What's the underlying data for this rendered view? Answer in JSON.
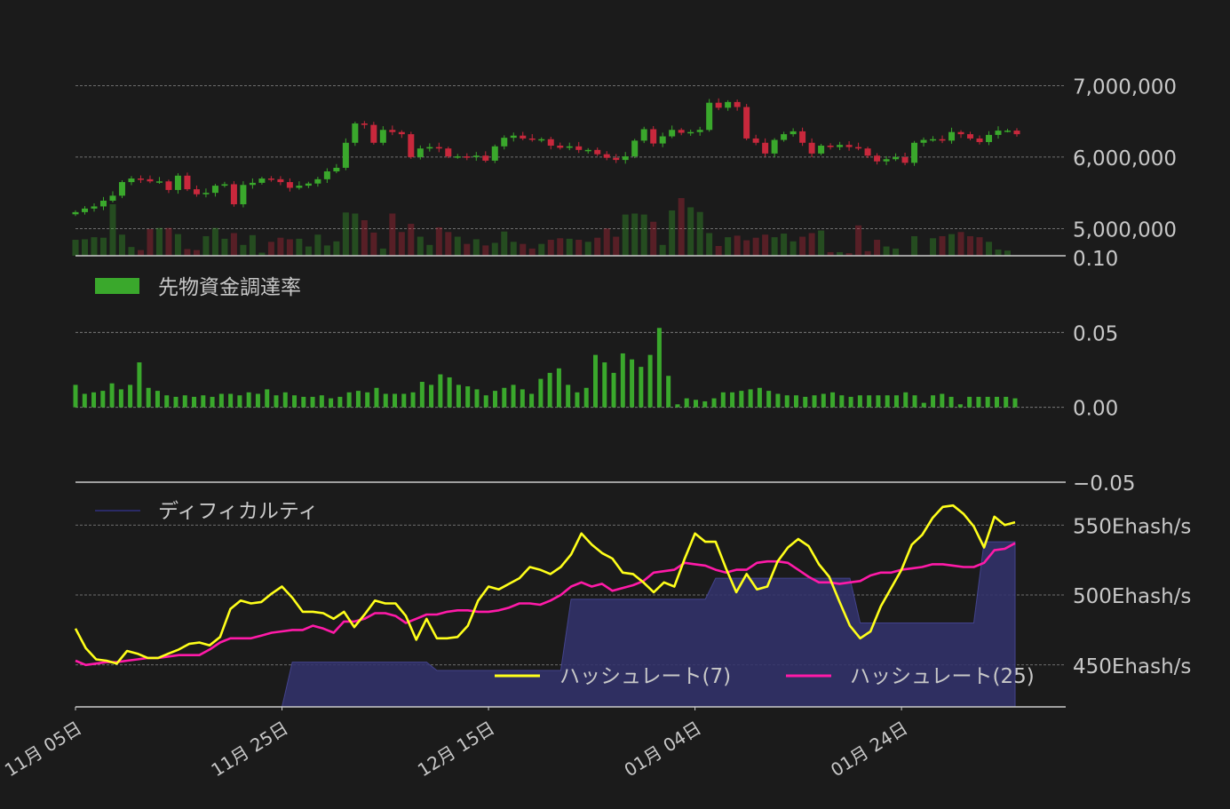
{
  "colors": {
    "background": "#1b1b1b",
    "up": "#3aa82c",
    "down": "#c8283c",
    "grid": "#888888",
    "axis_line": "#cccccc",
    "text": "#c8c8c8",
    "funding_bar": "#3aa82c",
    "hashrate7": "#ffff1a",
    "hashrate25": "#ff1aa8",
    "difficulty_line": "#2a2a66",
    "difficulty_fill": "#33336e"
  },
  "chart_data": [
    {
      "type": "candlestick",
      "panel": "price",
      "y_ticks": [
        "7,000,000",
        "6,000,000",
        "5,000,000"
      ],
      "ylim": [
        4620000,
        7700000
      ],
      "ohlc_close": [
        5230000,
        5280000,
        5310000,
        5390000,
        5460000,
        5650000,
        5700000,
        5690000,
        5660000,
        5660000,
        5540000,
        5740000,
        5550000,
        5480000,
        5500000,
        5600000,
        5620000,
        5340000,
        5610000,
        5640000,
        5700000,
        5690000,
        5650000,
        5570000,
        5600000,
        5630000,
        5690000,
        5800000,
        5850000,
        6200000,
        6470000,
        6450000,
        6200000,
        6380000,
        6350000,
        6320000,
        6000000,
        6120000,
        6140000,
        6120000,
        6010000,
        6010000,
        6000000,
        6020000,
        5950000,
        6150000,
        6270000,
        6300000,
        6260000,
        6250000,
        6250000,
        6160000,
        6130000,
        6150000,
        6100000,
        6100000,
        6040000,
        5990000,
        5960000,
        6010000,
        6230000,
        6390000,
        6190000,
        6290000,
        6380000,
        6340000,
        6350000,
        6380000,
        6760000,
        6690000,
        6770000,
        6700000,
        6260000,
        6200000,
        6050000,
        6240000,
        6320000,
        6360000,
        6200000,
        6050000,
        6160000,
        6140000,
        6170000,
        6140000,
        6120000,
        6020000,
        5940000,
        5970000,
        6000000,
        5920000,
        6200000,
        6240000,
        6250000,
        6230000,
        6350000,
        6320000,
        6260000,
        6210000,
        6310000,
        6370000,
        6370000,
        6320000
      ],
      "volume_level": [
        0.31,
        0.32,
        0.36,
        0.35,
        1.0,
        0.41,
        0.17,
        0.11,
        0.52,
        0.54,
        0.54,
        0.42,
        0.13,
        0.11,
        0.38,
        0.54,
        0.33,
        0.44,
        0.21,
        0.4,
        0.06,
        0.27,
        0.35,
        0.32,
        0.33,
        0.18,
        0.41,
        0.2,
        0.28,
        0.84,
        0.82,
        0.69,
        0.45,
        0.14,
        0.82,
        0.46,
        0.62,
        0.37,
        0.21,
        0.55,
        0.46,
        0.37,
        0.23,
        0.32,
        0.2,
        0.25,
        0.47,
        0.27,
        0.23,
        0.14,
        0.23,
        0.31,
        0.34,
        0.33,
        0.31,
        0.27,
        0.35,
        0.53,
        0.37,
        0.8,
        0.82,
        0.8,
        0.66,
        0.21,
        0.88,
        1.12,
        0.94,
        0.85,
        0.44,
        0.19,
        0.36,
        0.39,
        0.3,
        0.35,
        0.41,
        0.36,
        0.43,
        0.28,
        0.37,
        0.44,
        0.49,
        0.07,
        0.07,
        0.05,
        0.59,
        0.09,
        0.31,
        0.18,
        0.14,
        0.0,
        0.38,
        0.0,
        0.34,
        0.38,
        0.42,
        0.46,
        0.38,
        0.36,
        0.27,
        0.12,
        0.1
      ]
    },
    {
      "type": "bar",
      "panel": "funding",
      "legend": "先物資金調達率",
      "y_ticks": [
        "0.10",
        "0.05",
        "0.00",
        "−0.05"
      ],
      "ylim": [
        -0.05,
        0.1
      ],
      "values": [
        0.015,
        0.009,
        0.01,
        0.011,
        0.016,
        0.012,
        0.015,
        0.03,
        0.013,
        0.011,
        0.008,
        0.007,
        0.008,
        0.007,
        0.008,
        0.007,
        0.009,
        0.009,
        0.008,
        0.01,
        0.009,
        0.012,
        0.008,
        0.01,
        0.008,
        0.007,
        0.007,
        0.008,
        0.006,
        0.007,
        0.01,
        0.011,
        0.01,
        0.013,
        0.009,
        0.009,
        0.009,
        0.01,
        0.017,
        0.015,
        0.022,
        0.02,
        0.015,
        0.014,
        0.012,
        0.008,
        0.011,
        0.013,
        0.015,
        0.012,
        0.009,
        0.019,
        0.023,
        0.026,
        0.015,
        0.01,
        0.013,
        0.035,
        0.03,
        0.023,
        0.036,
        0.032,
        0.027,
        0.035,
        0.053,
        0.021,
        0.002,
        0.006,
        0.005,
        0.004,
        0.006,
        0.01,
        0.01,
        0.011,
        0.012,
        0.013,
        0.011,
        0.009,
        0.008,
        0.008,
        0.007,
        0.008,
        0.009,
        0.01,
        0.008,
        0.007,
        0.008,
        0.008,
        0.008,
        0.008,
        0.008,
        0.01,
        0.008,
        0.003,
        0.008,
        0.009,
        0.007,
        0.002,
        0.007,
        0.007,
        0.007,
        0.007,
        0.007,
        0.006
      ]
    },
    {
      "type": "line",
      "panel": "hashrate",
      "x_ticks": [
        "11月 05日",
        "11月 25日",
        "12月 15日",
        "01月 04日",
        "01月 24日"
      ],
      "y_ticks": [
        "550Ehash/s",
        "500Ehash/s",
        "450Ehash/s"
      ],
      "ylim": [
        420,
        560
      ],
      "legend_position": "top-left and bottom-right",
      "difficulty": {
        "name": "ディフィカルティ",
        "points": [
          [
            0,
            420
          ],
          [
            20,
            420
          ],
          [
            21,
            452
          ],
          [
            34,
            452
          ],
          [
            35,
            446
          ],
          [
            47,
            446
          ],
          [
            48,
            497
          ],
          [
            61,
            497
          ],
          [
            62,
            512
          ],
          [
            75,
            512
          ],
          [
            76,
            480
          ],
          [
            87,
            480
          ],
          [
            88,
            538
          ],
          [
            91,
            538
          ]
        ]
      },
      "series": [
        {
          "name": "ハッシュレート(7)",
          "values": [
            476,
            462,
            454,
            453,
            451,
            460,
            458,
            455,
            455,
            458,
            461,
            465,
            466,
            464,
            470,
            490,
            496,
            494,
            495,
            501,
            506,
            498,
            488,
            488,
            487,
            483,
            488,
            477,
            486,
            496,
            494,
            494,
            485,
            468,
            483,
            469,
            469,
            470,
            478,
            496,
            506,
            504,
            508,
            512,
            520,
            518,
            515,
            520,
            529,
            544,
            536,
            530,
            526,
            516,
            515,
            509,
            502,
            509,
            506,
            526,
            544,
            538,
            538,
            519,
            502,
            515,
            504,
            506,
            524,
            534,
            540,
            535,
            522,
            513,
            495,
            478,
            469,
            474,
            492,
            505,
            518,
            536,
            543,
            555,
            563,
            564,
            558,
            549,
            534,
            556,
            550,
            552
          ]
        },
        {
          "name": "ハッシュレート(25)",
          "values": [
            453,
            450,
            451,
            452,
            452,
            453,
            454,
            455,
            455,
            456,
            457,
            457,
            457,
            461,
            466,
            469,
            469,
            469,
            471,
            473,
            474,
            475,
            475,
            478,
            476,
            473,
            481,
            481,
            483,
            487,
            487,
            485,
            480,
            483,
            486,
            486,
            488,
            489,
            489,
            488,
            488,
            489,
            491,
            494,
            494,
            493,
            496,
            500,
            506,
            509,
            506,
            508,
            503,
            505,
            507,
            510,
            516,
            517,
            518,
            523,
            522,
            521,
            518,
            516,
            518,
            518,
            523,
            524,
            524,
            523,
            518,
            513,
            509,
            509,
            508,
            509,
            510,
            514,
            516,
            516,
            518,
            519,
            520,
            522,
            522,
            521,
            520,
            520,
            523,
            532,
            533,
            537
          ]
        }
      ]
    }
  ]
}
